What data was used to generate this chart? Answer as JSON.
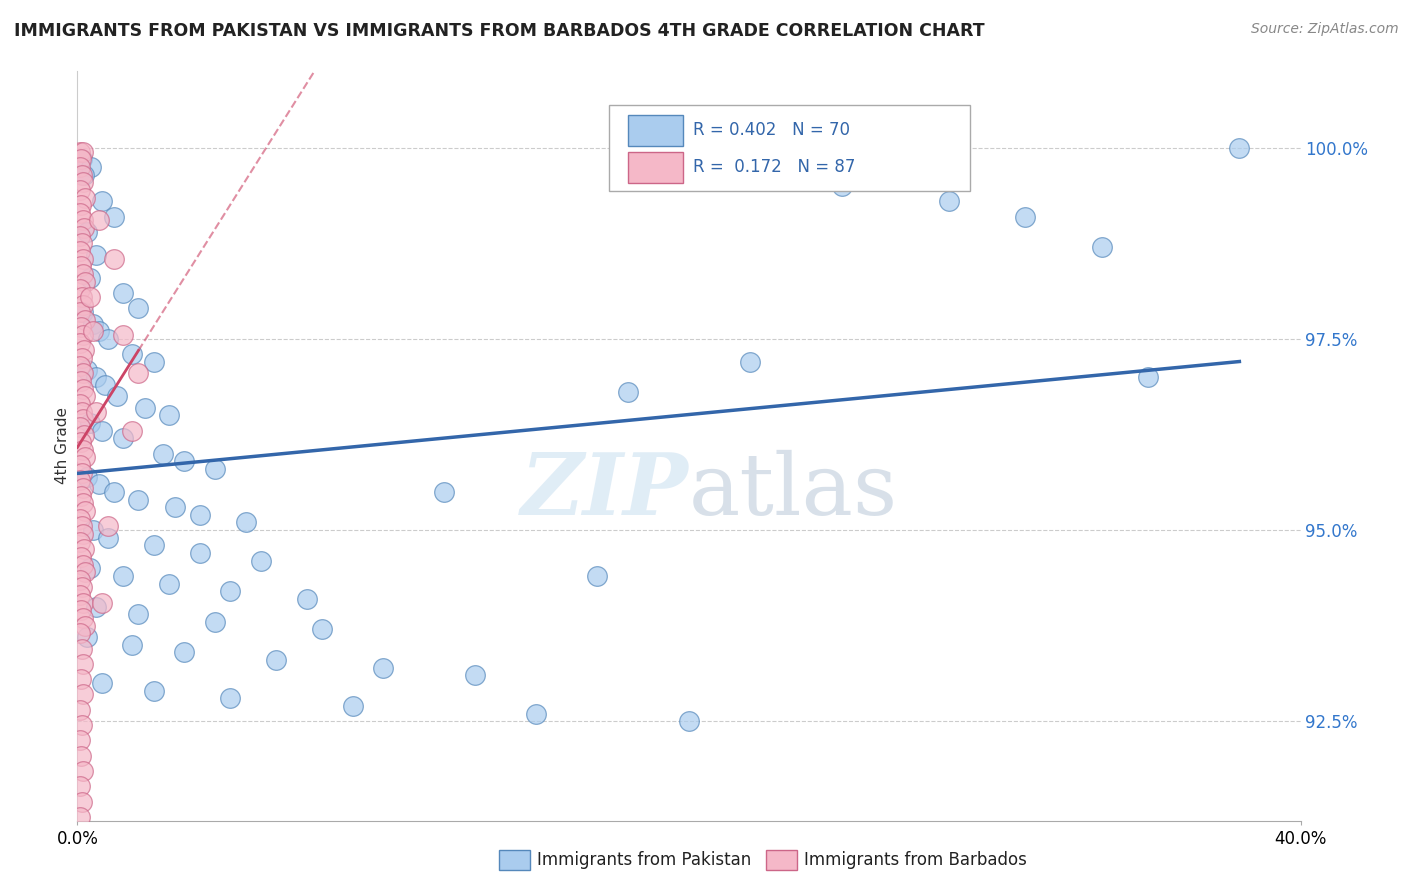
{
  "title": "IMMIGRANTS FROM PAKISTAN VS IMMIGRANTS FROM BARBADOS 4TH GRADE CORRELATION CHART",
  "source": "Source: ZipAtlas.com",
  "ylabel": "4th Grade",
  "yticks": [
    92.5,
    95.0,
    97.5,
    100.0
  ],
  "ytick_labels": [
    "92.5%",
    "95.0%",
    "97.5%",
    "100.0%"
  ],
  "xmin": 0.0,
  "xmax": 40.0,
  "ymin": 91.2,
  "ymax": 101.0,
  "blue_color": "#aaccee",
  "blue_edge": "#5588bb",
  "pink_color": "#f5b8c8",
  "pink_edge": "#cc6688",
  "trend_blue_color": "#3366aa",
  "trend_pink_color": "#cc4466",
  "watermark": "ZIPatlas",
  "scatter_blue": [
    [
      0.15,
      99.85
    ],
    [
      0.45,
      99.75
    ],
    [
      0.22,
      99.65
    ],
    [
      0.8,
      99.3
    ],
    [
      1.2,
      99.1
    ],
    [
      0.3,
      98.9
    ],
    [
      0.6,
      98.6
    ],
    [
      0.4,
      98.3
    ],
    [
      1.5,
      98.1
    ],
    [
      2.0,
      97.9
    ],
    [
      0.2,
      97.85
    ],
    [
      0.5,
      97.7
    ],
    [
      0.7,
      97.6
    ],
    [
      1.0,
      97.5
    ],
    [
      1.8,
      97.3
    ],
    [
      2.5,
      97.2
    ],
    [
      0.3,
      97.1
    ],
    [
      0.6,
      97.0
    ],
    [
      0.9,
      96.9
    ],
    [
      1.3,
      96.75
    ],
    [
      2.2,
      96.6
    ],
    [
      3.0,
      96.5
    ],
    [
      0.4,
      96.4
    ],
    [
      0.8,
      96.3
    ],
    [
      1.5,
      96.2
    ],
    [
      2.8,
      96.0
    ],
    [
      3.5,
      95.9
    ],
    [
      4.5,
      95.8
    ],
    [
      0.3,
      95.7
    ],
    [
      0.7,
      95.6
    ],
    [
      1.2,
      95.5
    ],
    [
      2.0,
      95.4
    ],
    [
      3.2,
      95.3
    ],
    [
      4.0,
      95.2
    ],
    [
      5.5,
      95.1
    ],
    [
      0.5,
      95.0
    ],
    [
      1.0,
      94.9
    ],
    [
      2.5,
      94.8
    ],
    [
      4.0,
      94.7
    ],
    [
      6.0,
      94.6
    ],
    [
      0.4,
      94.5
    ],
    [
      1.5,
      94.4
    ],
    [
      3.0,
      94.3
    ],
    [
      5.0,
      94.2
    ],
    [
      7.5,
      94.1
    ],
    [
      0.6,
      94.0
    ],
    [
      2.0,
      93.9
    ],
    [
      4.5,
      93.8
    ],
    [
      8.0,
      93.7
    ],
    [
      0.3,
      93.6
    ],
    [
      1.8,
      93.5
    ],
    [
      3.5,
      93.4
    ],
    [
      6.5,
      93.3
    ],
    [
      10.0,
      93.2
    ],
    [
      13.0,
      93.1
    ],
    [
      0.8,
      93.0
    ],
    [
      2.5,
      92.9
    ],
    [
      5.0,
      92.8
    ],
    [
      9.0,
      92.7
    ],
    [
      15.0,
      92.6
    ],
    [
      20.0,
      92.5
    ],
    [
      25.0,
      99.5
    ],
    [
      28.5,
      99.3
    ],
    [
      31.0,
      99.1
    ],
    [
      33.5,
      98.7
    ],
    [
      38.0,
      100.0
    ],
    [
      35.0,
      97.0
    ],
    [
      22.0,
      97.2
    ],
    [
      18.0,
      96.8
    ],
    [
      12.0,
      95.5
    ],
    [
      17.0,
      94.4
    ]
  ],
  "scatter_pink": [
    [
      0.1,
      99.95
    ],
    [
      0.18,
      99.95
    ],
    [
      0.12,
      99.85
    ],
    [
      0.08,
      99.75
    ],
    [
      0.15,
      99.65
    ],
    [
      0.2,
      99.55
    ],
    [
      0.1,
      99.45
    ],
    [
      0.25,
      99.35
    ],
    [
      0.12,
      99.25
    ],
    [
      0.08,
      99.15
    ],
    [
      0.18,
      99.05
    ],
    [
      0.22,
      98.95
    ],
    [
      0.1,
      98.85
    ],
    [
      0.15,
      98.75
    ],
    [
      0.08,
      98.65
    ],
    [
      0.2,
      98.55
    ],
    [
      0.12,
      98.45
    ],
    [
      0.18,
      98.35
    ],
    [
      0.25,
      98.25
    ],
    [
      0.1,
      98.15
    ],
    [
      0.15,
      98.05
    ],
    [
      0.2,
      97.95
    ],
    [
      0.08,
      97.85
    ],
    [
      0.25,
      97.75
    ],
    [
      0.12,
      97.65
    ],
    [
      0.18,
      97.55
    ],
    [
      0.1,
      97.45
    ],
    [
      0.22,
      97.35
    ],
    [
      0.15,
      97.25
    ],
    [
      0.08,
      97.15
    ],
    [
      0.2,
      97.05
    ],
    [
      0.12,
      96.95
    ],
    [
      0.18,
      96.85
    ],
    [
      0.25,
      96.75
    ],
    [
      0.1,
      96.65
    ],
    [
      0.15,
      96.55
    ],
    [
      0.2,
      96.45
    ],
    [
      0.08,
      96.35
    ],
    [
      0.22,
      96.25
    ],
    [
      0.12,
      96.15
    ],
    [
      0.18,
      96.05
    ],
    [
      0.25,
      95.95
    ],
    [
      0.1,
      95.85
    ],
    [
      0.15,
      95.75
    ],
    [
      0.08,
      95.65
    ],
    [
      0.2,
      95.55
    ],
    [
      0.12,
      95.45
    ],
    [
      0.18,
      95.35
    ],
    [
      0.25,
      95.25
    ],
    [
      0.1,
      95.15
    ],
    [
      0.15,
      95.05
    ],
    [
      0.2,
      94.95
    ],
    [
      0.08,
      94.85
    ],
    [
      0.22,
      94.75
    ],
    [
      0.12,
      94.65
    ],
    [
      0.18,
      94.55
    ],
    [
      0.25,
      94.45
    ],
    [
      0.1,
      94.35
    ],
    [
      0.15,
      94.25
    ],
    [
      0.08,
      94.15
    ],
    [
      0.2,
      94.05
    ],
    [
      0.12,
      93.95
    ],
    [
      0.18,
      93.85
    ],
    [
      0.25,
      93.75
    ],
    [
      0.1,
      93.65
    ],
    [
      0.15,
      93.45
    ],
    [
      0.2,
      93.25
    ],
    [
      0.12,
      93.05
    ],
    [
      0.18,
      92.85
    ],
    [
      0.1,
      92.65
    ],
    [
      0.15,
      92.45
    ],
    [
      0.08,
      92.25
    ],
    [
      0.12,
      92.05
    ],
    [
      0.18,
      91.85
    ],
    [
      0.1,
      91.65
    ],
    [
      0.15,
      91.45
    ],
    [
      0.08,
      91.25
    ],
    [
      0.5,
      97.6
    ],
    [
      0.7,
      99.05
    ],
    [
      1.5,
      97.55
    ],
    [
      0.4,
      98.05
    ],
    [
      1.0,
      95.05
    ],
    [
      0.8,
      94.05
    ],
    [
      1.2,
      98.55
    ],
    [
      2.0,
      97.05
    ],
    [
      0.6,
      96.55
    ],
    [
      1.8,
      96.3
    ]
  ]
}
